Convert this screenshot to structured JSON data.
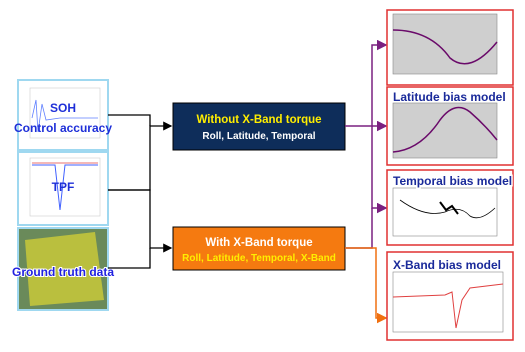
{
  "inputs": [
    {
      "label": [
        "SOH",
        "Control accuracy"
      ]
    },
    {
      "label": [
        "TPF"
      ]
    },
    {
      "label": [
        "Ground truth data"
      ]
    }
  ],
  "processes": [
    {
      "title": "Without X-Band torque",
      "subtitle": "Roll, Latitude, Temporal"
    },
    {
      "title": "With X-Band torque",
      "subtitle": "Roll, Latitude, Temporal, X-Band"
    }
  ],
  "outputs": [
    {
      "title": "Latitude bias model"
    },
    {
      "title": "Temporal bias model"
    },
    {
      "title": "X-Band bias model"
    }
  ]
}
